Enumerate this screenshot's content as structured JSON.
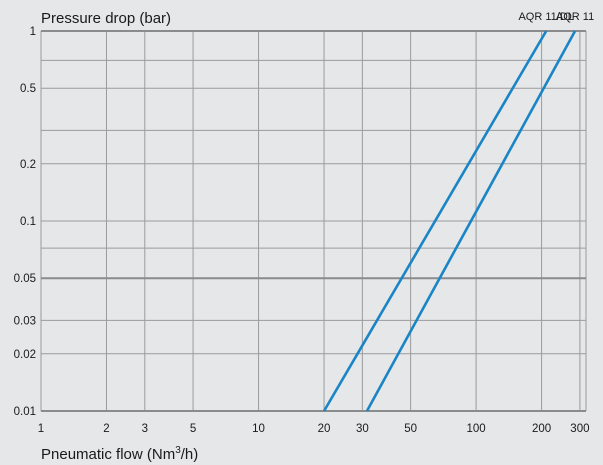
{
  "chart_data": {
    "type": "line",
    "title": "",
    "ylabel": "Pressure drop (bar)",
    "xlabel_main": "Pneumatic flow (Nm",
    "xlabel_sup": "3",
    "xlabel_end": "/h)",
    "x_scale": "log",
    "y_scale": "log",
    "xlim": [
      1,
      320
    ],
    "ylim": [
      0.01,
      1
    ],
    "grid": true,
    "x_ticks": [
      1,
      2,
      3,
      5,
      10,
      20,
      30,
      50,
      100,
      200,
      300
    ],
    "x_tick_labels": [
      "1",
      "2",
      "3",
      "5",
      "10",
      "20",
      "30",
      "50",
      "100",
      "200",
      "300"
    ],
    "y_ticks": [
      0.01,
      0.02,
      0.03,
      0.05,
      0.1,
      0.2,
      0.5,
      1
    ],
    "y_tick_labels": [
      "0.01",
      "0.02",
      "0.03",
      "0.05",
      "0.1",
      "0.2",
      "0.5",
      "1"
    ],
    "series": [
      {
        "name": "AQR 11/DL",
        "x": [
          20,
          210
        ],
        "y": [
          0.01,
          1
        ]
      },
      {
        "name": "AQR 11",
        "x": [
          31.5,
          285
        ],
        "y": [
          0.01,
          1
        ]
      }
    ],
    "colors": {
      "line": "#1a85c6",
      "grid": "#9a9b9d",
      "grid_strong": "#8a8b8d",
      "background": "#e6e7e8"
    }
  }
}
